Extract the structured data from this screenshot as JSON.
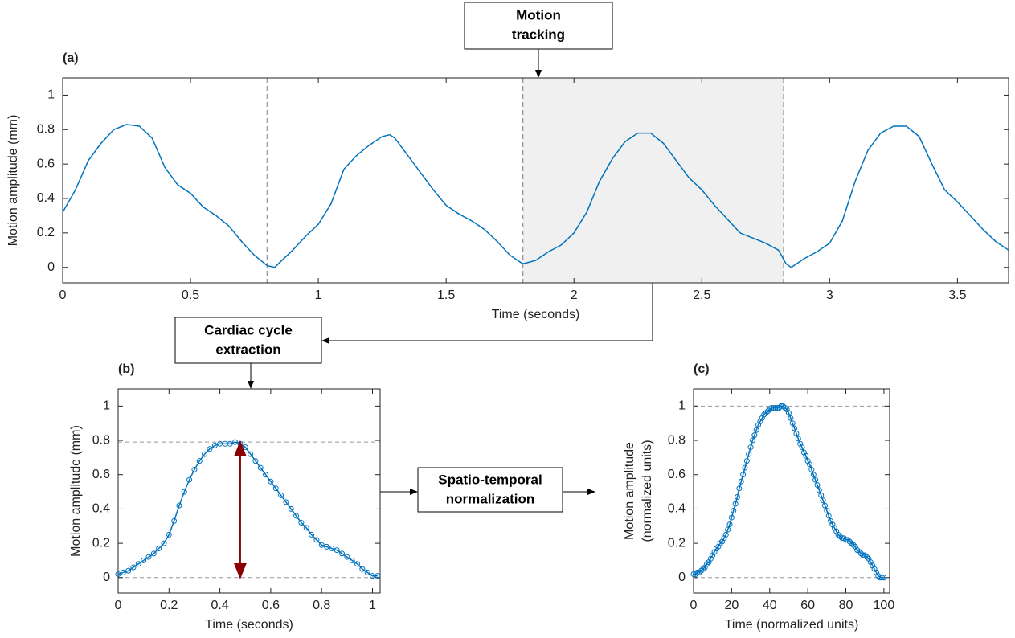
{
  "chart_data": [
    {
      "type": "line",
      "panel": "(a)",
      "xlabel": "Time (seconds)",
      "ylabel": "Motion amplitude (mm)",
      "xlim": [
        0,
        3.7
      ],
      "ylim": [
        -0.09,
        1.1
      ],
      "xticks": [
        0,
        0.5,
        1,
        1.5,
        2,
        2.5,
        3,
        3.5
      ],
      "yticks": [
        0,
        0.2,
        0.4,
        0.6,
        0.8,
        1
      ],
      "shade": [
        1.8,
        2.82
      ],
      "vlines": [
        0.8,
        1.8,
        2.82
      ],
      "markers": false,
      "series": [
        {
          "color": "#0072bd",
          "x": [
            0,
            0.05,
            0.1,
            0.15,
            0.2,
            0.25,
            0.3,
            0.35,
            0.4,
            0.45,
            0.5,
            0.55,
            0.6,
            0.65,
            0.7,
            0.75,
            0.8,
            0.83,
            0.85,
            0.9,
            0.95,
            1.0,
            1.05,
            1.1,
            1.15,
            1.2,
            1.25,
            1.28,
            1.3,
            1.35,
            1.4,
            1.45,
            1.5,
            1.55,
            1.6,
            1.65,
            1.7,
            1.75,
            1.8,
            1.85,
            1.9,
            1.95,
            2.0,
            2.05,
            2.1,
            2.15,
            2.2,
            2.25,
            2.3,
            2.35,
            2.4,
            2.45,
            2.5,
            2.55,
            2.6,
            2.65,
            2.7,
            2.75,
            2.8,
            2.83,
            2.85,
            2.9,
            2.95,
            3.0,
            3.05,
            3.1,
            3.15,
            3.2,
            3.25,
            3.3,
            3.35,
            3.4,
            3.45,
            3.5,
            3.55,
            3.6,
            3.65,
            3.7
          ],
          "values": [
            0.32,
            0.45,
            0.62,
            0.72,
            0.8,
            0.83,
            0.82,
            0.75,
            0.58,
            0.48,
            0.43,
            0.35,
            0.3,
            0.24,
            0.15,
            0.07,
            0.01,
            0.0,
            0.03,
            0.1,
            0.18,
            0.25,
            0.37,
            0.57,
            0.65,
            0.71,
            0.76,
            0.77,
            0.75,
            0.65,
            0.55,
            0.45,
            0.36,
            0.31,
            0.27,
            0.22,
            0.15,
            0.07,
            0.02,
            0.04,
            0.09,
            0.13,
            0.2,
            0.32,
            0.5,
            0.63,
            0.73,
            0.78,
            0.78,
            0.72,
            0.62,
            0.52,
            0.45,
            0.36,
            0.28,
            0.2,
            0.17,
            0.14,
            0.1,
            0.02,
            0.0,
            0.05,
            0.09,
            0.14,
            0.27,
            0.5,
            0.68,
            0.78,
            0.82,
            0.82,
            0.76,
            0.6,
            0.45,
            0.38,
            0.3,
            0.22,
            0.15,
            0.1
          ]
        }
      ]
    },
    {
      "type": "line",
      "panel": "(b)",
      "xlabel": "Time (seconds)",
      "ylabel": "Motion amplitude (mm)",
      "xlim": [
        0,
        1.03
      ],
      "ylim": [
        -0.09,
        1.1
      ],
      "xticks": [
        0,
        0.2,
        0.4,
        0.6,
        0.8,
        1
      ],
      "yticks": [
        0,
        0.2,
        0.4,
        0.6,
        0.8,
        1
      ],
      "hlines": [
        0,
        0.79
      ],
      "arrow": {
        "x": 0.48,
        "from": 0,
        "to": 0.79,
        "color": "#8b0000"
      },
      "markers": true,
      "series": [
        {
          "color": "#0072bd",
          "x": [
            0,
            0.02,
            0.04,
            0.06,
            0.08,
            0.1,
            0.12,
            0.14,
            0.16,
            0.18,
            0.2,
            0.22,
            0.24,
            0.26,
            0.28,
            0.3,
            0.32,
            0.34,
            0.36,
            0.38,
            0.4,
            0.42,
            0.44,
            0.46,
            0.48,
            0.5,
            0.52,
            0.54,
            0.56,
            0.58,
            0.6,
            0.62,
            0.64,
            0.66,
            0.68,
            0.7,
            0.72,
            0.74,
            0.76,
            0.78,
            0.8,
            0.82,
            0.84,
            0.86,
            0.88,
            0.9,
            0.92,
            0.94,
            0.96,
            0.98,
            1.0,
            1.02
          ],
          "values": [
            0.02,
            0.03,
            0.04,
            0.06,
            0.08,
            0.1,
            0.12,
            0.14,
            0.17,
            0.2,
            0.25,
            0.33,
            0.42,
            0.5,
            0.57,
            0.63,
            0.68,
            0.72,
            0.75,
            0.77,
            0.78,
            0.78,
            0.78,
            0.79,
            0.78,
            0.76,
            0.72,
            0.68,
            0.64,
            0.6,
            0.56,
            0.52,
            0.48,
            0.44,
            0.4,
            0.36,
            0.32,
            0.29,
            0.25,
            0.22,
            0.19,
            0.18,
            0.17,
            0.16,
            0.14,
            0.12,
            0.1,
            0.08,
            0.05,
            0.03,
            0.01,
            0.01
          ]
        }
      ]
    },
    {
      "type": "line",
      "panel": "(c)",
      "xlabel": "Time (normalized units)",
      "ylabel": [
        "Motion amplitude",
        "(normalized units)"
      ],
      "xlim": [
        0,
        103
      ],
      "ylim": [
        -0.09,
        1.1
      ],
      "xticks": [
        0,
        20,
        40,
        60,
        80,
        100
      ],
      "yticks": [
        0,
        0.2,
        0.4,
        0.6,
        0.8,
        1
      ],
      "hlines": [
        0,
        1
      ],
      "markers": true,
      "series": [
        {
          "color": "#0072bd",
          "x": [
            0,
            1,
            2,
            3,
            4,
            5,
            6,
            7,
            8,
            9,
            10,
            11,
            12,
            13,
            14,
            15,
            16,
            17,
            18,
            19,
            20,
            21,
            22,
            23,
            24,
            25,
            26,
            27,
            28,
            29,
            30,
            31,
            32,
            33,
            34,
            35,
            36,
            37,
            38,
            39,
            40,
            41,
            42,
            43,
            44,
            45,
            46,
            47,
            48,
            49,
            50,
            51,
            52,
            53,
            54,
            55,
            56,
            57,
            58,
            59,
            60,
            61,
            62,
            63,
            64,
            65,
            66,
            67,
            68,
            69,
            70,
            71,
            72,
            73,
            74,
            75,
            76,
            77,
            78,
            79,
            80,
            81,
            82,
            83,
            84,
            85,
            86,
            87,
            88,
            89,
            90,
            91,
            92,
            93,
            94,
            95,
            96,
            97,
            98,
            99,
            100
          ],
          "values": [
            0.02,
            0.02,
            0.03,
            0.03,
            0.04,
            0.05,
            0.06,
            0.08,
            0.09,
            0.11,
            0.13,
            0.15,
            0.17,
            0.18,
            0.2,
            0.21,
            0.23,
            0.25,
            0.28,
            0.31,
            0.35,
            0.39,
            0.43,
            0.47,
            0.52,
            0.56,
            0.6,
            0.64,
            0.68,
            0.72,
            0.76,
            0.8,
            0.83,
            0.86,
            0.89,
            0.91,
            0.93,
            0.95,
            0.96,
            0.97,
            0.98,
            0.99,
            0.99,
            0.99,
            0.99,
            0.99,
            1,
            1,
            0.99,
            0.98,
            0.96,
            0.93,
            0.9,
            0.87,
            0.84,
            0.81,
            0.78,
            0.76,
            0.73,
            0.71,
            0.68,
            0.66,
            0.63,
            0.6,
            0.57,
            0.54,
            0.51,
            0.48,
            0.45,
            0.42,
            0.39,
            0.36,
            0.33,
            0.31,
            0.29,
            0.27,
            0.25,
            0.24,
            0.23,
            0.23,
            0.22,
            0.22,
            0.21,
            0.2,
            0.19,
            0.18,
            0.16,
            0.15,
            0.14,
            0.13,
            0.13,
            0.12,
            0.11,
            0.09,
            0.07,
            0.05,
            0.03,
            0.01,
            0,
            0,
            0
          ]
        }
      ]
    }
  ],
  "boxes": [
    [
      "Motion",
      "tracking"
    ],
    [
      "Cardiac cycle",
      "extraction"
    ],
    [
      "Spatio-temporal",
      "normalization"
    ]
  ]
}
